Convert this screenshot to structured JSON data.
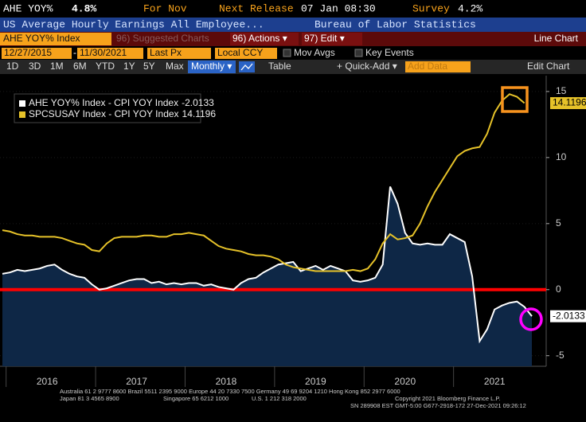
{
  "header": {
    "ticker": "AHE YOY%",
    "last": "4.8%",
    "period": "For Nov",
    "next_release_label": "Next Release",
    "next_release": "07 Jan 08:30",
    "survey_label": "Survey",
    "survey": "4.2%",
    "description": "US Average Hourly Earnings All Employee...",
    "source": "Bureau of Labor Statistics"
  },
  "menu": {
    "security": "AHE YOY% Index",
    "suggested": "96) Suggested Charts",
    "actions": "96) Actions ▾",
    "edit": "97) Edit ▾",
    "view": "Line Chart"
  },
  "settings": {
    "start_date": "12/27/2015",
    "separator": "-",
    "end_date": "11/30/2021",
    "field": "Last Px",
    "currency": "Local CCY",
    "mov_avgs": "Mov Avgs",
    "key_events": "Key Events"
  },
  "toolbar": {
    "ranges": [
      "1D",
      "3D",
      "1M",
      "6M",
      "YTD",
      "1Y",
      "5Y",
      "Max"
    ],
    "frequency": "Monthly ▾",
    "table": "Table",
    "quick_add": "+ Quick-Add ▾",
    "add_data": "Add Data",
    "edit_chart": "Edit Chart"
  },
  "chart_data": {
    "type": "line",
    "categories": [
      null,
      null,
      null,
      null,
      null,
      null,
      "2016",
      null,
      null,
      null,
      null,
      null,
      null,
      null,
      null,
      null,
      null,
      null,
      "2017",
      null,
      null,
      null,
      null,
      null,
      null,
      null,
      null,
      null,
      null,
      null,
      "2018",
      null,
      null,
      null,
      null,
      null,
      null,
      null,
      null,
      null,
      null,
      null,
      "2019",
      null,
      null,
      null,
      null,
      null,
      null,
      null,
      null,
      null,
      null,
      null,
      "2020",
      null,
      null,
      null,
      null,
      null,
      null,
      null,
      null,
      null,
      null,
      null,
      "2021",
      null,
      null,
      null,
      null,
      null
    ],
    "series": [
      {
        "name": "AHE YOY% Index - CPI YOY Index",
        "color": "#ffffff",
        "area": true,
        "area_color": "#0e2746",
        "values": [
          1.2,
          1.3,
          1.5,
          1.4,
          1.5,
          1.6,
          1.8,
          1.9,
          1.5,
          1.2,
          1.0,
          0.9,
          0.4,
          0.0,
          0.1,
          0.3,
          0.5,
          0.7,
          0.8,
          0.8,
          0.5,
          0.6,
          0.4,
          0.5,
          0.4,
          0.5,
          0.5,
          0.3,
          0.4,
          0.2,
          0.1,
          0.0,
          0.5,
          0.8,
          0.9,
          1.3,
          1.6,
          1.9,
          2.0,
          2.1,
          1.4,
          1.6,
          1.8,
          1.5,
          1.8,
          1.6,
          1.4,
          0.7,
          0.6,
          0.7,
          0.9,
          1.9,
          7.8,
          6.5,
          4.3,
          3.5,
          3.4,
          3.5,
          3.4,
          3.4,
          4.2,
          3.9,
          3.6,
          1.0,
          -3.9,
          -3.0,
          -1.5,
          -1.2,
          -1.0,
          -0.9,
          -1.3,
          -2.0133
        ]
      },
      {
        "name": "SPCSUSAY Index - CPI YOY Index",
        "color": "#e6c229",
        "values": [
          4.5,
          4.4,
          4.2,
          4.1,
          4.1,
          4.0,
          4.0,
          4.0,
          3.9,
          3.7,
          3.5,
          3.4,
          3.0,
          2.9,
          3.5,
          3.9,
          4.0,
          4.0,
          4.0,
          4.1,
          4.1,
          4.0,
          4.0,
          4.2,
          4.2,
          4.3,
          4.2,
          4.1,
          3.7,
          3.3,
          3.1,
          3.0,
          2.9,
          2.7,
          2.6,
          2.6,
          2.5,
          2.3,
          1.9,
          1.7,
          1.6,
          1.5,
          1.4,
          1.4,
          1.4,
          1.4,
          1.4,
          1.5,
          1.4,
          1.6,
          2.3,
          3.5,
          4.2,
          3.8,
          3.9,
          4.1,
          5.0,
          6.3,
          7.4,
          8.3,
          9.2,
          10.1,
          10.5,
          10.7,
          10.8,
          11.8,
          13.4,
          14.3,
          14.8,
          14.6,
          14.1196,
          null
        ]
      }
    ],
    "ylim": [
      -5.8,
      16.2
    ],
    "yticks": [
      -5,
      0,
      5,
      10,
      15
    ],
    "grid": true,
    "legend": "top-left",
    "reference_line": {
      "value": 0,
      "color": "#ff0000"
    }
  },
  "footer": {
    "line1": "Australia 61 2 9777 8600 Brazil 5511 2395 9000 Europe 44 20 7330 7500 Germany 49 69 9204 1210 Hong Kong 852 2977 6000",
    "line2": [
      "Japan 81 3 4565 8900",
      "Singapore 65 6212 1000",
      "U.S. 1 212 318 2000",
      "Copyright 2021 Bloomberg Finance L.P."
    ],
    "line3": "SN 289908 EST  GMT-5:00 G677-2918-172 27-Dec-2021 09:26:12"
  }
}
